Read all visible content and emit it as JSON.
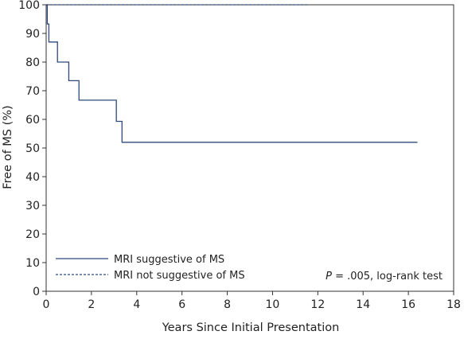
{
  "chart_data": {
    "type": "line",
    "title": "",
    "xlabel": "Years Since Initial Presentation",
    "ylabel": "Free of MS (%)",
    "xlim": [
      0,
      18
    ],
    "ylim": [
      0,
      100
    ],
    "xticks": [
      0,
      2,
      4,
      6,
      8,
      10,
      12,
      14,
      16,
      18
    ],
    "yticks": [
      0,
      10,
      20,
      30,
      40,
      50,
      60,
      70,
      80,
      90,
      100
    ],
    "grid": false,
    "legend_position": "bottom-left",
    "annotation": {
      "prefix": "P",
      "text": " = .005, log-rank test"
    },
    "series": [
      {
        "name": "MRI suggestive of MS",
        "style": "solid",
        "color": "#2e4a7d",
        "x": [
          0,
          0.05,
          0.05,
          0.12,
          0.12,
          0.5,
          0.5,
          1.0,
          1.0,
          1.45,
          1.45,
          3.1,
          3.1,
          3.35,
          3.35,
          16.4
        ],
        "y": [
          100,
          100,
          93.3,
          93.3,
          87,
          87,
          80,
          80,
          73.5,
          73.5,
          66.7,
          66.7,
          59.3,
          59.3,
          52,
          52
        ]
      },
      {
        "name": "MRI not suggestive of MS",
        "style": "dashed",
        "color": "#2e4a7d",
        "x": [
          0,
          11.6
        ],
        "y": [
          100,
          100
        ]
      }
    ]
  }
}
